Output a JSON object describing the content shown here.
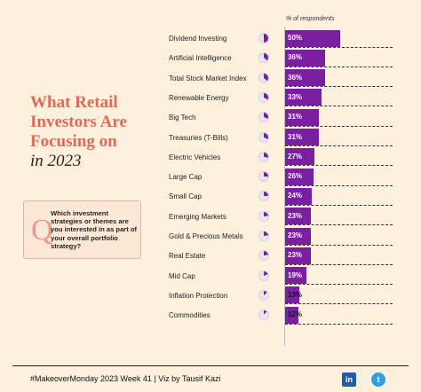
{
  "title": {
    "line1": "What Retail",
    "line2": "Investors Are",
    "line3": "Focusing on",
    "line4": "in 2023"
  },
  "question": {
    "letter": "Q",
    "text": "Which investment strategies or themes are you interested in as part of your overall portfolio strategy?"
  },
  "footer": {
    "text": "#MakeoverMonday 2023 Week 41 | Viz by Tausif Kazi",
    "linkedin_icon": "linkedin-icon",
    "twitter_icon": "twitter-icon"
  },
  "colors": {
    "bar": "#7a1fa0",
    "pie_fill": "#7a1fa0",
    "pie_bg": "#ebe6f2",
    "title_accent": "#e06a5a",
    "background": "#fdf0dc"
  },
  "chart_data": {
    "type": "bar",
    "orientation": "horizontal",
    "value_header": "% of respondents",
    "categories": [
      "Dividend Investing",
      "Artificial Intelligence",
      "Total Stock Market Index",
      "Renewable Energy",
      "Big Tech",
      "Treasuries (T-Bills)",
      "Electric Vehicles",
      "Large Cap",
      "Small Cap",
      "Emerging Markets",
      "Gold & Precious Metals",
      "Real Estate",
      "Mid Cap",
      "Inflation Protection",
      "Commodities"
    ],
    "values": [
      50,
      36,
      36,
      33,
      31,
      31,
      27,
      26,
      24,
      23,
      23,
      23,
      19,
      13,
      12
    ],
    "labels": [
      "50%",
      "36%",
      "36%",
      "33%",
      "31%",
      "31%",
      "27%",
      "26%",
      "24%",
      "23%",
      "23%",
      "23%",
      "19%",
      "13%",
      "12%"
    ],
    "xlim": [
      0,
      100
    ]
  }
}
